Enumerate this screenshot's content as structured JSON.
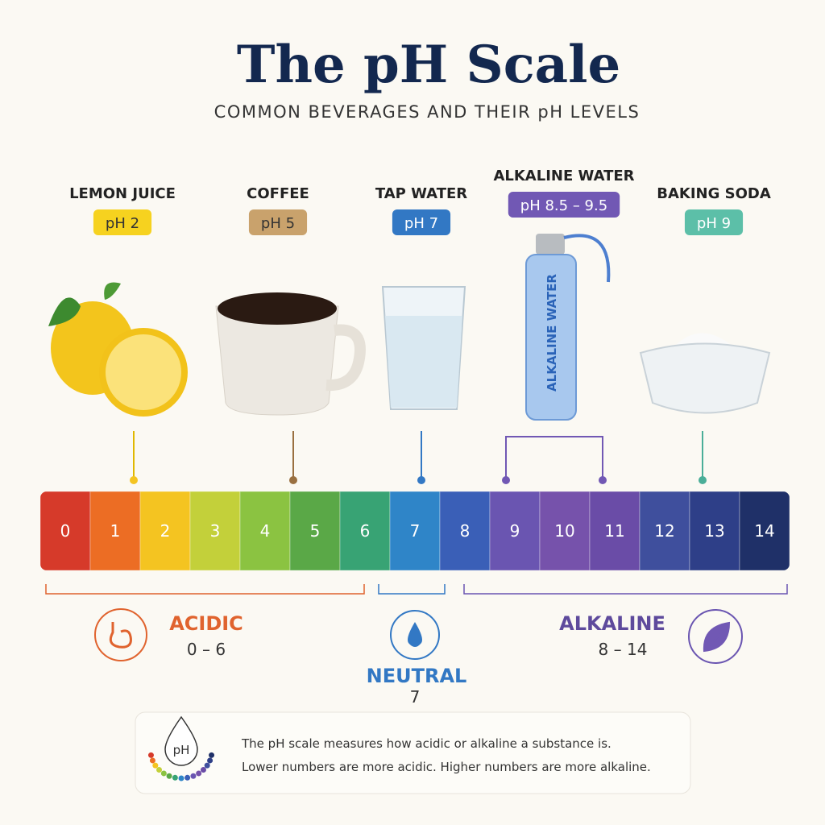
{
  "header": {
    "title": "The pH Scale",
    "subtitle": "COMMON BEVERAGES AND THEIR pH LEVELS"
  },
  "items": [
    {
      "name": "LEMON JUICE",
      "badge": "pH 2",
      "color": "#f6d21f",
      "text_color": "#333333"
    },
    {
      "name": "COFFEE",
      "badge": "pH 5",
      "color": "#c9a26c",
      "text_color": "#333333"
    },
    {
      "name": "TAP WATER",
      "badge": "pH 7",
      "color": "#3278c4",
      "text_color": "#ffffff"
    },
    {
      "name": "ALKALINE WATER",
      "badge": "pH 8.5 – 9.5",
      "color": "#7158b4",
      "text_color": "#ffffff"
    },
    {
      "name": "BAKING SODA",
      "badge": "pH 9",
      "color": "#5cbfa8",
      "text_color": "#ffffff"
    }
  ],
  "scale": {
    "levels": [
      0,
      1,
      2,
      3,
      4,
      5,
      6,
      7,
      8,
      9,
      10,
      11,
      12,
      13,
      14
    ],
    "colors": [
      "#d63a2a",
      "#ec6d24",
      "#f4c421",
      "#c3d03a",
      "#8bc341",
      "#5aa847",
      "#38a374",
      "#2f85c8",
      "#3a5fb7",
      "#6a55b1",
      "#7652ab",
      "#6a4ca7",
      "#3f4f9d",
      "#2e3f88",
      "#1f3068"
    ]
  },
  "groups": [
    {
      "name": "ACIDIC",
      "range": "0 – 6",
      "color": "#e0632e"
    },
    {
      "name": "NEUTRAL",
      "range": "7",
      "color": "#3278c4"
    },
    {
      "name": "ALKALINE",
      "range": "8 – 14",
      "color": "#5e4a9c"
    }
  ],
  "note": {
    "icon": "pH",
    "lines": [
      "The pH scale measures how acidic or alkaline a substance is.",
      "Lower numbers are more acidic. Higher numbers are more alkaline."
    ]
  }
}
